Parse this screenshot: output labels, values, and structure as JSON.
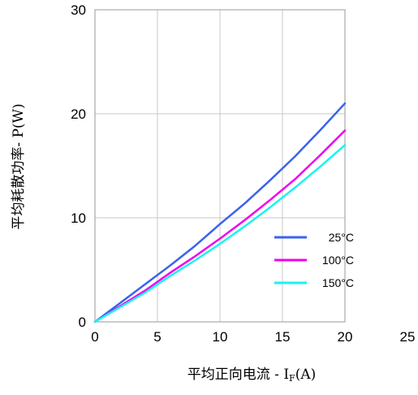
{
  "chart_data": {
    "type": "line",
    "xlabel": {
      "prefix": "平均正向电流 - I",
      "subscript": "F",
      "suffix": "(A)"
    },
    "ylabel": "平均耗散功率- P(W)",
    "xlim": [
      0,
      25
    ],
    "ylim": [
      0,
      30
    ],
    "xticks": [
      0,
      5,
      10,
      15,
      20,
      25
    ],
    "yticks": [
      0,
      10,
      20,
      30
    ],
    "grid": true,
    "legend_position": "lower-right",
    "series": [
      {
        "name": "25°C",
        "color": "#3a63ee",
        "x": [
          0,
          1,
          2,
          4,
          6,
          8,
          10,
          12,
          14,
          16,
          18,
          20
        ],
        "y": [
          0,
          0.9,
          1.8,
          3.6,
          5.4,
          7.3,
          9.4,
          11.4,
          13.6,
          15.9,
          18.4,
          21.0
        ]
      },
      {
        "name": "100°C",
        "color": "#f000f0",
        "x": [
          0,
          1,
          2,
          4,
          6,
          8,
          10,
          12,
          14,
          16,
          18,
          20
        ],
        "y": [
          0,
          0.75,
          1.5,
          3.0,
          4.7,
          6.3,
          8.0,
          9.8,
          11.7,
          13.7,
          16.0,
          18.4
        ]
      },
      {
        "name": "150°C",
        "color": "#1af2f2",
        "x": [
          0,
          1,
          2,
          4,
          6,
          8,
          10,
          12,
          14,
          16,
          18,
          20
        ],
        "y": [
          0,
          0.7,
          1.4,
          2.8,
          4.4,
          5.9,
          7.5,
          9.2,
          11.0,
          12.9,
          14.9,
          17.0
        ]
      }
    ]
  }
}
